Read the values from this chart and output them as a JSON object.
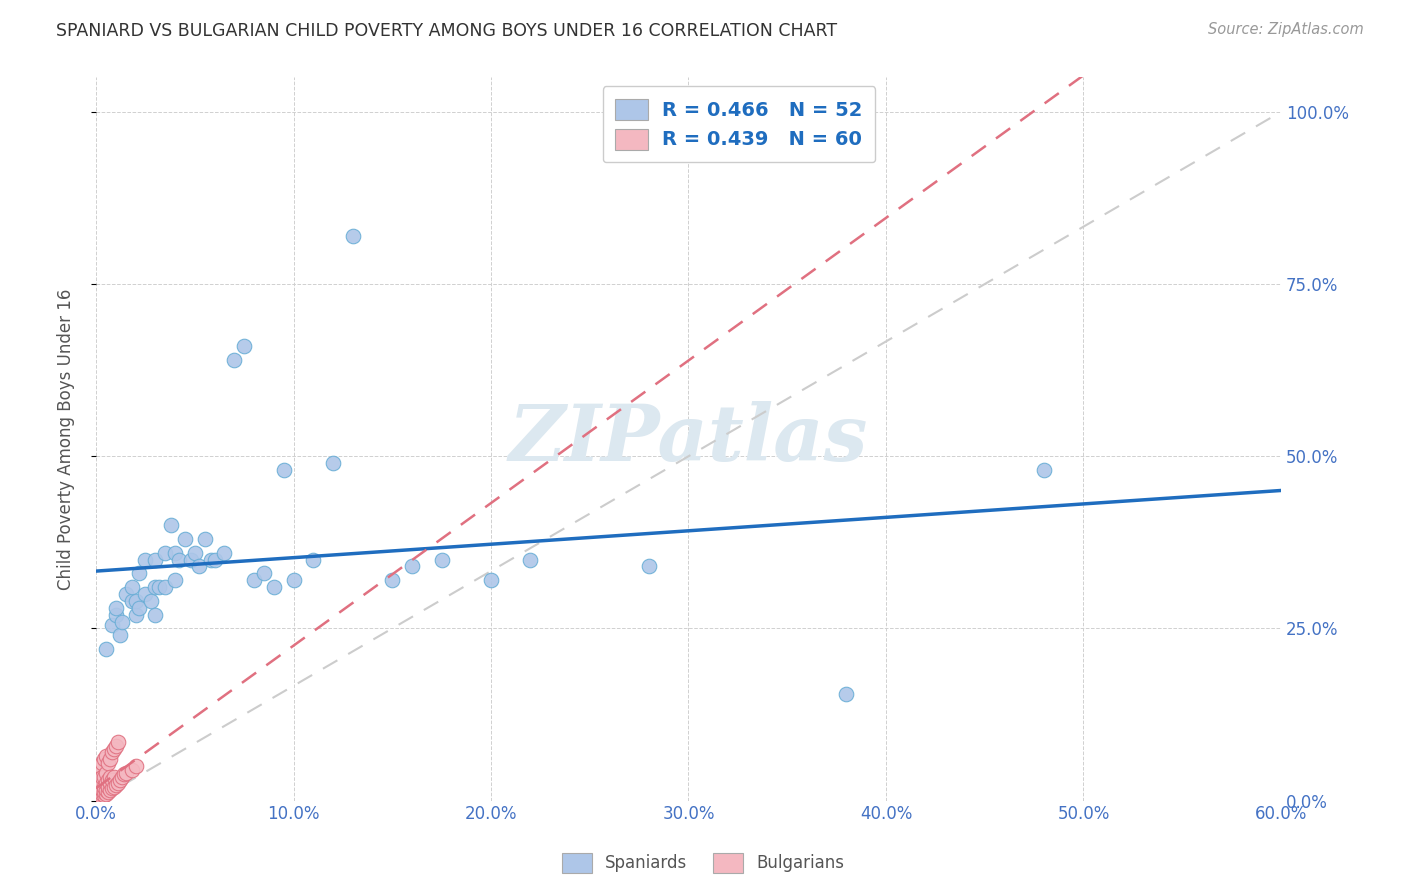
{
  "title": "SPANIARD VS BULGARIAN CHILD POVERTY AMONG BOYS UNDER 16 CORRELATION CHART",
  "source": "Source: ZipAtlas.com",
  "xlabel_ticks": [
    "0.0%",
    "10.0%",
    "20.0%",
    "30.0%",
    "40.0%",
    "50.0%",
    "60.0%"
  ],
  "ylabel_ticks_right": [
    "100.0%",
    "75.0%",
    "50.0%",
    "25.0%",
    "0.0%"
  ],
  "xlabel_vals": [
    0.0,
    0.1,
    0.2,
    0.3,
    0.4,
    0.5,
    0.6
  ],
  "ylabel_vals": [
    0.0,
    0.25,
    0.5,
    0.75,
    1.0
  ],
  "xlim": [
    0.0,
    0.6
  ],
  "ylim": [
    0.0,
    1.05
  ],
  "ylabel": "Child Poverty Among Boys Under 16",
  "spaniard_color": "#aec6e8",
  "bulgarian_color": "#f4b8c1",
  "spaniard_edge": "#6aaed6",
  "bulgarian_edge": "#e07080",
  "spaniard_R": 0.466,
  "spaniard_N": 52,
  "bulgarian_R": 0.439,
  "bulgarian_N": 60,
  "spaniard_line_color": "#1f6dbf",
  "bulgarian_line_color": "#e07080",
  "diagonal_color": "#cccccc",
  "watermark": "ZIPatlas",
  "watermark_color": "#dce8f0",
  "spaniards_x": [
    0.005,
    0.008,
    0.01,
    0.01,
    0.012,
    0.013,
    0.015,
    0.018,
    0.018,
    0.02,
    0.02,
    0.022,
    0.022,
    0.025,
    0.025,
    0.028,
    0.03,
    0.03,
    0.03,
    0.032,
    0.035,
    0.035,
    0.038,
    0.04,
    0.04,
    0.042,
    0.045,
    0.048,
    0.05,
    0.052,
    0.055,
    0.058,
    0.06,
    0.065,
    0.07,
    0.075,
    0.08,
    0.085,
    0.09,
    0.095,
    0.1,
    0.11,
    0.12,
    0.13,
    0.15,
    0.16,
    0.175,
    0.2,
    0.22,
    0.28,
    0.38,
    0.48
  ],
  "spaniards_y": [
    0.22,
    0.255,
    0.27,
    0.28,
    0.24,
    0.26,
    0.3,
    0.29,
    0.31,
    0.27,
    0.29,
    0.28,
    0.33,
    0.3,
    0.35,
    0.29,
    0.27,
    0.31,
    0.35,
    0.31,
    0.31,
    0.36,
    0.4,
    0.32,
    0.36,
    0.35,
    0.38,
    0.35,
    0.36,
    0.34,
    0.38,
    0.35,
    0.35,
    0.36,
    0.64,
    0.66,
    0.32,
    0.33,
    0.31,
    0.48,
    0.32,
    0.35,
    0.49,
    0.82,
    0.32,
    0.34,
    0.35,
    0.32,
    0.35,
    0.34,
    0.155,
    0.48
  ],
  "bulgarians_x": [
    0.0,
    0.0,
    0.0,
    0.0,
    0.0,
    0.0,
    0.0,
    0.001,
    0.001,
    0.001,
    0.001,
    0.001,
    0.001,
    0.001,
    0.002,
    0.002,
    0.002,
    0.002,
    0.002,
    0.002,
    0.003,
    0.003,
    0.003,
    0.003,
    0.003,
    0.003,
    0.004,
    0.004,
    0.004,
    0.004,
    0.004,
    0.005,
    0.005,
    0.005,
    0.005,
    0.005,
    0.006,
    0.006,
    0.006,
    0.006,
    0.007,
    0.007,
    0.007,
    0.007,
    0.008,
    0.008,
    0.008,
    0.009,
    0.009,
    0.009,
    0.01,
    0.01,
    0.011,
    0.011,
    0.012,
    0.013,
    0.014,
    0.015,
    0.018,
    0.02
  ],
  "bulgarians_y": [
    0.0,
    0.005,
    0.01,
    0.015,
    0.02,
    0.025,
    0.03,
    0.0,
    0.005,
    0.01,
    0.015,
    0.02,
    0.03,
    0.04,
    0.005,
    0.01,
    0.015,
    0.02,
    0.03,
    0.05,
    0.005,
    0.01,
    0.015,
    0.025,
    0.035,
    0.055,
    0.008,
    0.012,
    0.02,
    0.035,
    0.06,
    0.01,
    0.015,
    0.025,
    0.04,
    0.065,
    0.012,
    0.02,
    0.03,
    0.055,
    0.015,
    0.025,
    0.035,
    0.06,
    0.018,
    0.03,
    0.07,
    0.02,
    0.035,
    0.075,
    0.022,
    0.08,
    0.025,
    0.085,
    0.03,
    0.035,
    0.038,
    0.04,
    0.045,
    0.05
  ]
}
